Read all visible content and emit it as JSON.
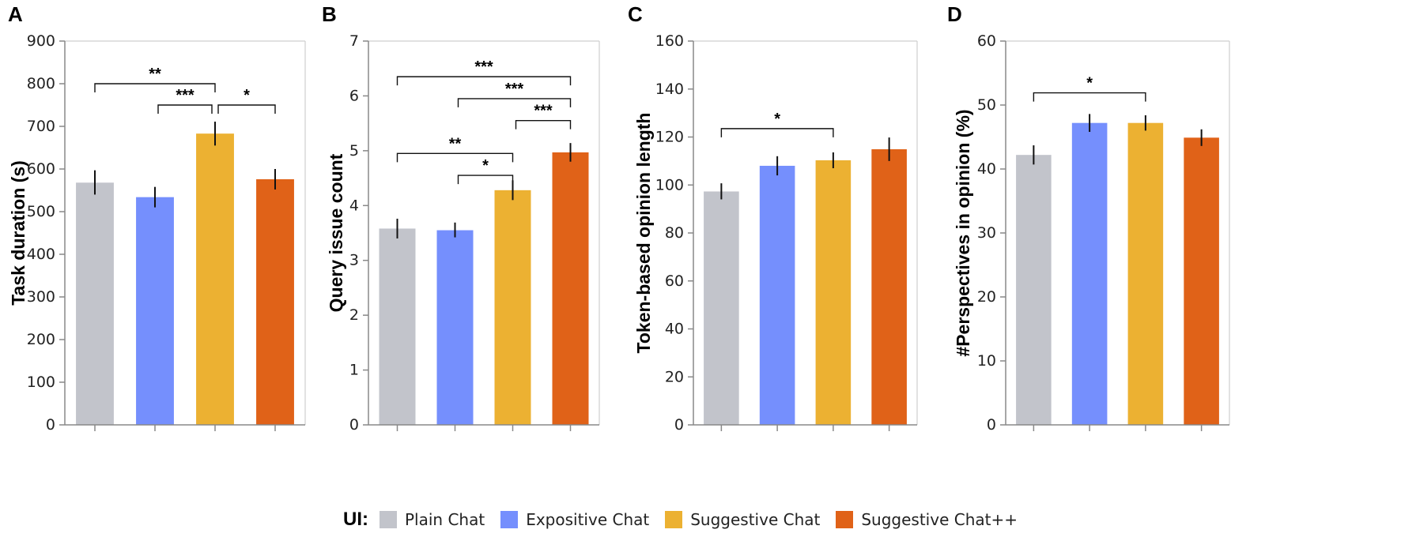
{
  "colors": {
    "plain": "#c2c4cb",
    "expositive": "#758ffd",
    "suggestive": "#ecb132",
    "suggestive_pp": "#e06218",
    "axis": "#888888",
    "grid_frame": "#cfcfcf"
  },
  "legend": {
    "title": "UI:",
    "entries": [
      {
        "label": "Plain Chat",
        "color_key": "plain"
      },
      {
        "label": "Expositive Chat",
        "color_key": "expositive"
      },
      {
        "label": "Suggestive Chat",
        "color_key": "suggestive"
      },
      {
        "label": "Suggestive Chat++",
        "color_key": "suggestive_pp"
      }
    ],
    "placement": "bottom-center"
  },
  "chart_data": [
    {
      "type": "bar",
      "panel": "A",
      "title": "",
      "xlabel": "",
      "ylabel": "Task duration (s)",
      "categories": [
        "Plain Chat",
        "Expositive Chat",
        "Suggestive Chat",
        "Suggestive Chat++"
      ],
      "values": [
        568,
        534,
        683,
        576
      ],
      "error": [
        [
          540,
          597
        ],
        [
          510,
          558
        ],
        [
          655,
          711
        ],
        [
          552,
          600
        ]
      ],
      "ylim": [
        0,
        900
      ],
      "yticks": [
        0,
        100,
        200,
        300,
        400,
        500,
        600,
        700,
        800,
        900
      ],
      "significance": [
        {
          "from": 0,
          "to": 2,
          "at": 800,
          "label": "**"
        },
        {
          "from": 1,
          "to": 2,
          "at": 750,
          "label": "***"
        },
        {
          "from": 2,
          "to": 3,
          "at": 750,
          "label": "*"
        }
      ]
    },
    {
      "type": "bar",
      "panel": "B",
      "title": "",
      "xlabel": "",
      "ylabel": "Query issue count",
      "categories": [
        "Plain Chat",
        "Expositive Chat",
        "Suggestive Chat",
        "Suggestive Chat++"
      ],
      "values": [
        3.58,
        3.55,
        4.28,
        4.97
      ],
      "error": [
        [
          3.4,
          3.76
        ],
        [
          3.42,
          3.69
        ],
        [
          4.1,
          4.46
        ],
        [
          4.8,
          5.14
        ]
      ],
      "ylim": [
        0,
        7
      ],
      "yticks": [
        0,
        1,
        2,
        3,
        4,
        5,
        6,
        7
      ],
      "significance": [
        {
          "from": 0,
          "to": 3,
          "at": 6.35,
          "label": "***"
        },
        {
          "from": 1,
          "to": 3,
          "at": 5.95,
          "label": "***"
        },
        {
          "from": 2,
          "to": 3,
          "at": 5.55,
          "label": "***"
        },
        {
          "from": 0,
          "to": 2,
          "at": 4.95,
          "label": "**"
        },
        {
          "from": 1,
          "to": 2,
          "at": 4.55,
          "label": "*"
        }
      ]
    },
    {
      "type": "bar",
      "panel": "C",
      "title": "",
      "xlabel": "",
      "ylabel": "Token-based opinion length",
      "categories": [
        "Plain Chat",
        "Expositive Chat",
        "Suggestive Chat",
        "Suggestive Chat++"
      ],
      "values": [
        97.3,
        108,
        110.3,
        114.9
      ],
      "error": [
        [
          94,
          100.7
        ],
        [
          104,
          112
        ],
        [
          107,
          113.6
        ],
        [
          110,
          119.8
        ]
      ],
      "ylim": [
        0,
        160
      ],
      "yticks": [
        0,
        20,
        40,
        60,
        80,
        100,
        120,
        140,
        160
      ],
      "significance": [
        {
          "from": 0,
          "to": 2,
          "at": 123.5,
          "label": "*"
        }
      ]
    },
    {
      "type": "bar",
      "panel": "D",
      "title": "",
      "xlabel": "",
      "ylabel": "#Perspectives in opinion (%)",
      "categories": [
        "Plain Chat",
        "Expositive Chat",
        "Suggestive Chat",
        "Suggestive Chat++"
      ],
      "values": [
        42.2,
        47.2,
        47.2,
        44.9
      ],
      "error": [
        [
          40.7,
          43.7
        ],
        [
          45.8,
          48.6
        ],
        [
          46.0,
          48.4
        ],
        [
          43.6,
          46.2
        ]
      ],
      "ylim": [
        0,
        60
      ],
      "yticks": [
        0,
        10,
        20,
        30,
        40,
        50,
        60
      ],
      "significance": [
        {
          "from": 0,
          "to": 2,
          "at": 51.9,
          "label": "*"
        }
      ]
    }
  ]
}
